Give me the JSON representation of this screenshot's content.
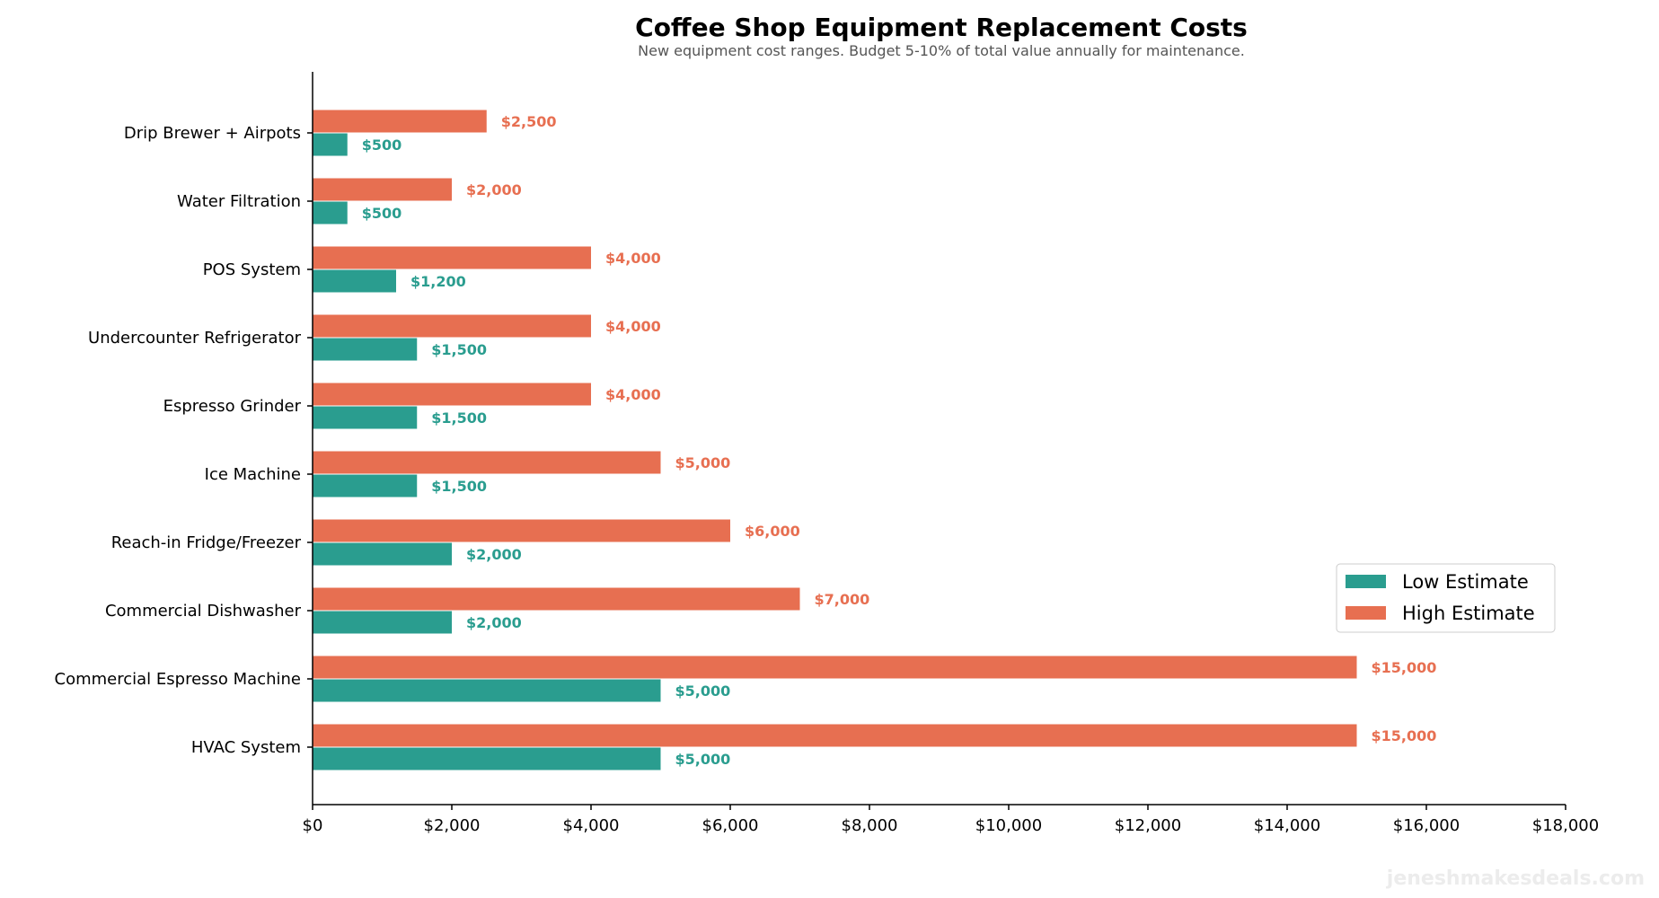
{
  "chart_data": {
    "type": "bar",
    "orientation": "horizontal",
    "title": "Coffee Shop Equipment Replacement Costs",
    "subtitle": "New equipment cost ranges. Budget 5-10% of total value annually for maintenance.",
    "categories": [
      "Drip Brewer + Airpots",
      "Water Filtration",
      "POS System",
      "Undercounter Refrigerator",
      "Espresso Grinder",
      "Ice Machine",
      "Reach-in Fridge/Freezer",
      "Commercial Dishwasher",
      "Commercial Espresso Machine",
      "HVAC System"
    ],
    "series": [
      {
        "name": "Low Estimate",
        "color": "#2a9d8f",
        "values": [
          500,
          500,
          1200,
          1500,
          1500,
          1500,
          2000,
          2000,
          5000,
          5000
        ],
        "labels": [
          "$500",
          "$500",
          "$1,200",
          "$1,500",
          "$1,500",
          "$1,500",
          "$2,000",
          "$2,000",
          "$5,000",
          "$5,000"
        ]
      },
      {
        "name": "High Estimate",
        "color": "#e76f51",
        "values": [
          2500,
          2000,
          4000,
          4000,
          4000,
          5000,
          6000,
          7000,
          15000,
          15000
        ],
        "labels": [
          "$2,500",
          "$2,000",
          "$4,000",
          "$4,000",
          "$4,000",
          "$5,000",
          "$6,000",
          "$7,000",
          "$15,000",
          "$15,000"
        ]
      }
    ],
    "xlim": [
      0,
      18000
    ],
    "xticks": [
      0,
      2000,
      4000,
      6000,
      8000,
      10000,
      12000,
      14000,
      16000,
      18000
    ],
    "xtick_labels": [
      "$0",
      "$2,000",
      "$4,000",
      "$6,000",
      "$8,000",
      "$10,000",
      "$12,000",
      "$14,000",
      "$16,000",
      "$18,000"
    ],
    "xlabel": "",
    "ylabel": "",
    "grid": false,
    "legend_position": "bottom-right"
  },
  "watermark": "jeneshmakesdeals.com"
}
